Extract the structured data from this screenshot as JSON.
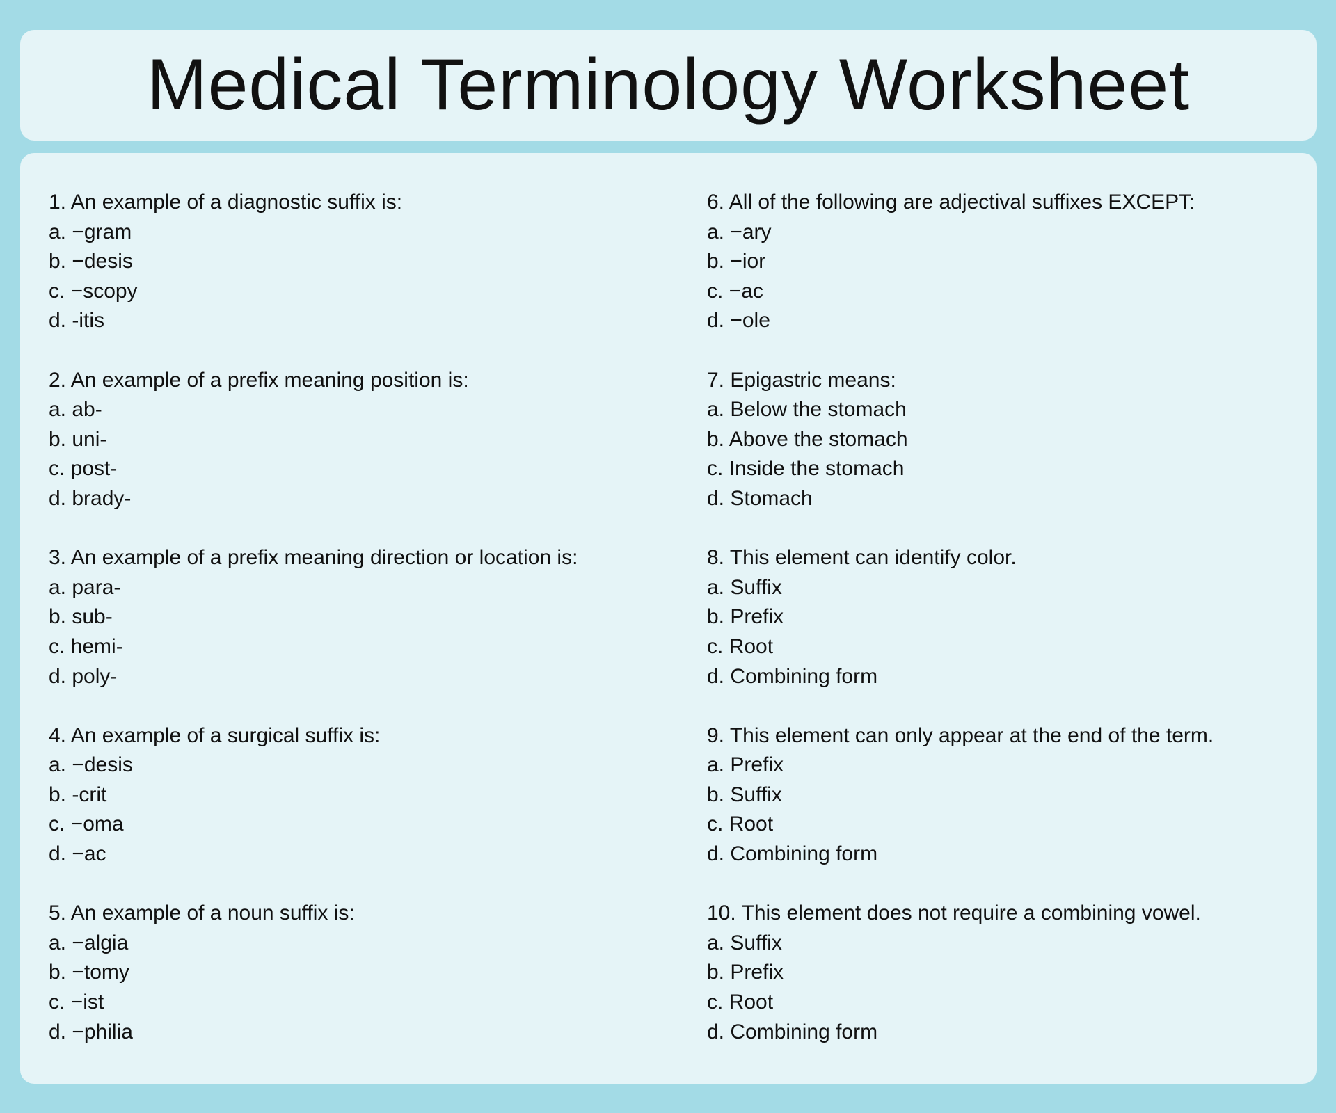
{
  "title": "Medical Terminology Worksheet",
  "questions": [
    {
      "prompt": "1. An example of a diagnostic suffix is:",
      "options": [
        "a. −gram",
        "b. −desis",
        "c. −scopy",
        "d. -itis"
      ]
    },
    {
      "prompt": "2. An example of a prefix meaning position is:",
      "options": [
        "a. ab-",
        "b. uni-",
        "c. post-",
        "d. brady-"
      ]
    },
    {
      "prompt": "3. An example of a prefix meaning direction or location is:",
      "options": [
        "a. para-",
        "b. sub-",
        "c. hemi-",
        "d. poly-"
      ]
    },
    {
      "prompt": "4. An example of a surgical suffix is:",
      "options": [
        "a. −desis",
        "b. -crit",
        "c. −oma",
        "d. −ac"
      ]
    },
    {
      "prompt": "5. An example of a noun suffix is:",
      "options": [
        "a. −algia",
        "b. −tomy",
        "c. −ist",
        "d. −philia"
      ]
    },
    {
      "prompt": "6. All of the following are adjectival suffixes EXCEPT:",
      "options": [
        "a. −ary",
        "b. −ior",
        "c. −ac",
        "d. −ole"
      ]
    },
    {
      "prompt": "7. Epigastric means:",
      "options": [
        "a. Below the stomach",
        "b. Above the stomach",
        "c. Inside the stomach",
        "d. Stomach"
      ]
    },
    {
      "prompt": "8. This element can identify color.",
      "options": [
        "a. Suffix",
        "b. Prefix",
        "c. Root",
        "d. Combining form"
      ]
    },
    {
      "prompt": "9. This element can only appear at the end of the term.",
      "options": [
        "a. Prefix",
        "b. Suffix",
        "c. Root",
        "d. Combining form"
      ]
    },
    {
      "prompt": "10. This element does not require a combining vowel.",
      "options": [
        "a. Suffix",
        "b. Prefix",
        "c. Root",
        "d. Combining form"
      ]
    }
  ]
}
